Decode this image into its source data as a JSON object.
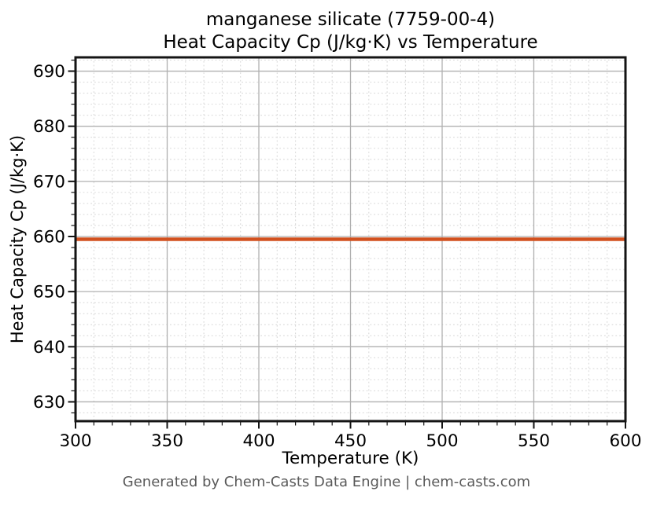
{
  "chart_data": {
    "type": "line",
    "title": "manganese silicate (7759-00-4)",
    "subtitle": "Heat Capacity Cp (J/kg·K) vs Temperature",
    "xlabel": "Temperature (K)",
    "ylabel": "Heat Capacity Cp (J/kg·K)",
    "series": [
      {
        "name": "heat-capacity-line",
        "x": [
          300,
          600
        ],
        "y": [
          659.5,
          659.5
        ],
        "color": "#d2511f",
        "line_width": 4.6
      }
    ],
    "xlim": [
      300,
      600
    ],
    "ylim": [
      626.5,
      692.5
    ],
    "x_ticks": [
      300,
      350,
      400,
      450,
      500,
      550,
      600
    ],
    "y_ticks": [
      630,
      640,
      650,
      660,
      670,
      680,
      690
    ],
    "x_minor_step": 10,
    "y_minor_step": 2,
    "grid": {
      "major": true,
      "minor": true
    },
    "legend_position": "none"
  },
  "footer": {
    "text": "Generated by Chem-Casts Data Engine | chem-casts.com"
  },
  "colors": {
    "line": "#d2511f",
    "grid_major": "#b0b0b0",
    "grid_minor": "#d9d9d9",
    "spine": "#141414",
    "tick_label": "#000000",
    "footer_text": "#595959",
    "background": "#ffffff"
  }
}
